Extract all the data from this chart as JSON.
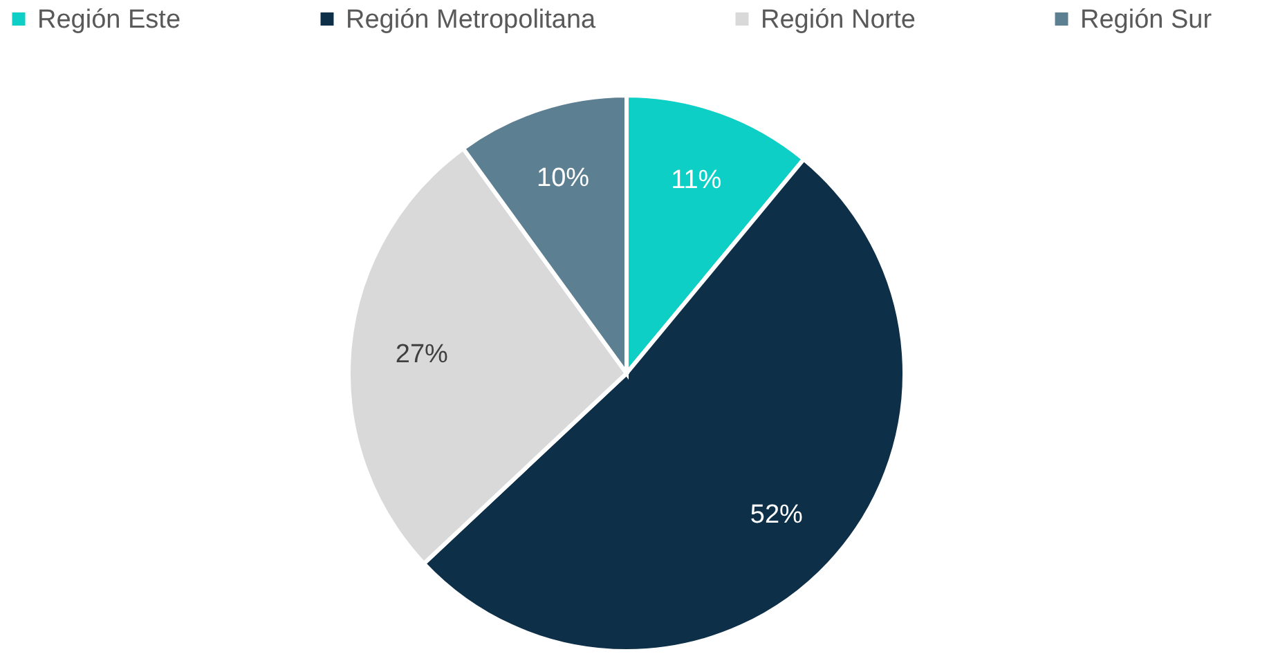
{
  "chart_data": {
    "type": "pie",
    "categories": [
      "Región Este",
      "Región Metropolitana",
      "Región Norte",
      "Región Sur"
    ],
    "values": [
      11,
      52,
      27,
      10
    ],
    "colors": [
      "#0ecfc6",
      "#0e2f48",
      "#d9d9d9",
      "#5d7f92"
    ],
    "value_labels": [
      "11%",
      "52%",
      "27%",
      "10%"
    ],
    "legend": "top"
  }
}
